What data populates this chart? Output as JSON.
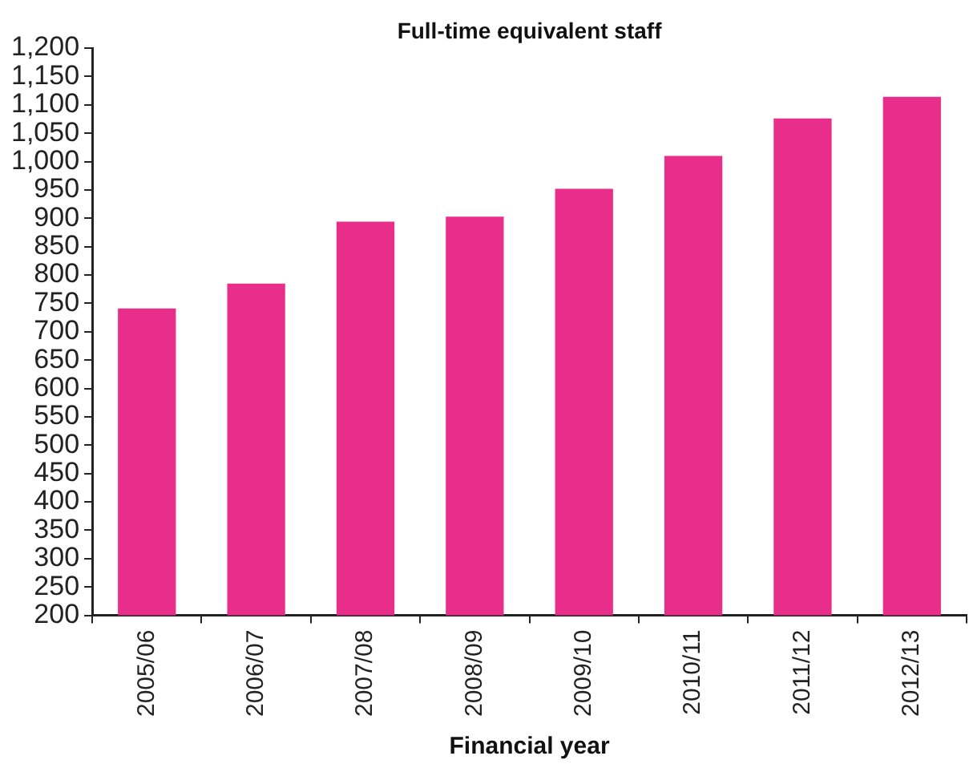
{
  "chart_data": {
    "type": "bar",
    "title": "Full-time equivalent staff",
    "xlabel": "Financial year",
    "categories": [
      "2005/06",
      "2006/07",
      "2007/08",
      "2008/09",
      "2009/10",
      "2010/11",
      "2011/12",
      "2012/13"
    ],
    "values": [
      741,
      785,
      894,
      903,
      952,
      1010,
      1076,
      1114
    ],
    "color": "#e82d8a",
    "ylim": [
      200,
      1200
    ],
    "yticks": [
      200,
      250,
      300,
      350,
      400,
      450,
      500,
      550,
      600,
      650,
      700,
      750,
      800,
      850,
      900,
      950,
      {
        "value": 1000,
        "label": "1,000"
      },
      {
        "value": 1050,
        "label": "1,050"
      },
      {
        "value": 1100,
        "label": "1,100"
      },
      {
        "value": 1150,
        "label": "1,150"
      },
      {
        "value": 1200,
        "label": "1,200"
      }
    ],
    "grid": false
  }
}
